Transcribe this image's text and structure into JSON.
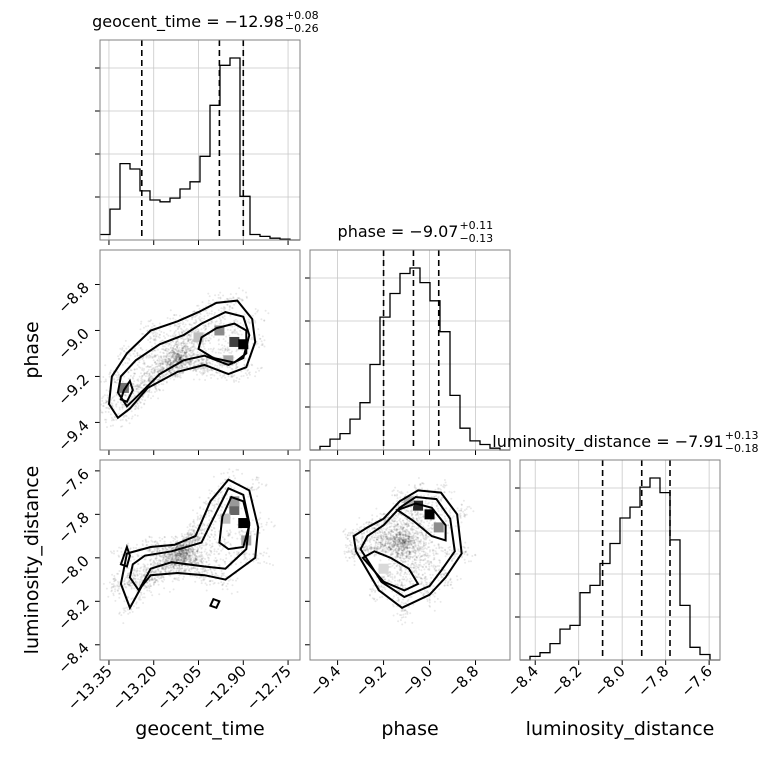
{
  "chart_data": {
    "type": "corner",
    "parameters": [
      "geocent_time",
      "phase",
      "luminosity_distance"
    ],
    "titles": [
      {
        "text": "geocent_time = −12.98",
        "plus": "+0.08",
        "minus": "−0.26"
      },
      {
        "text": "phase = −9.07",
        "plus": "+0.11",
        "minus": "−0.13"
      },
      {
        "text": "luminosity_distance = −7.91",
        "plus": "+0.13",
        "minus": "−0.18"
      }
    ],
    "ranges": {
      "geocent_time": [
        -13.38,
        -12.71
      ],
      "phase": [
        -9.52,
        -8.65
      ],
      "luminosity_distance": [
        -8.47,
        -7.55
      ]
    },
    "ticks": {
      "geocent_time": [
        -13.35,
        -13.2,
        -13.05,
        -12.9,
        -12.75
      ],
      "phase": [
        -9.4,
        -9.2,
        -9.0,
        -8.8
      ],
      "luminosity_distance": [
        -8.4,
        -8.2,
        -8.0,
        -7.8,
        -7.6
      ]
    },
    "tick_labels": {
      "geocent_time": [
        "−13.35",
        "−13.20",
        "−13.05",
        "−12.90",
        "−12.75"
      ],
      "phase": [
        "−9.4",
        "−9.2",
        "−9.0",
        "−8.8"
      ],
      "luminosity_distance": [
        "−8.4",
        "−8.2",
        "−8.0",
        "−7.8",
        "−7.6"
      ]
    },
    "axis_labels": [
      "geocent_time",
      "phase",
      "luminosity_distance"
    ],
    "quantiles": {
      "geocent_time": [
        -13.24,
        -12.98,
        -12.9
      ],
      "phase": [
        -9.2,
        -9.07,
        -8.96
      ],
      "luminosity_distance": [
        -8.09,
        -7.91,
        -7.78
      ]
    },
    "histograms": {
      "geocent_time": {
        "bins": [
          -13.38,
          -13.3465,
          -13.313,
          -13.2795,
          -13.246,
          -13.2125,
          -13.179,
          -13.1455,
          -13.112,
          -13.0785,
          -13.045,
          -13.0115,
          -12.978,
          -12.9445,
          -12.911,
          -12.8775,
          -12.844,
          -12.8105,
          -12.777,
          -12.7435,
          -12.71
        ],
        "counts": [
          0.03,
          0.17,
          0.42,
          0.39,
          0.27,
          0.22,
          0.21,
          0.23,
          0.28,
          0.32,
          0.46,
          0.74,
          0.96,
          1.0,
          0.24,
          0.03,
          0.02,
          0.01,
          0.005,
          0.0
        ]
      },
      "phase": {
        "bins": [
          -9.52,
          -9.4765,
          -9.433,
          -9.3895,
          -9.346,
          -9.3025,
          -9.259,
          -9.2155,
          -9.172,
          -9.1285,
          -9.085,
          -9.0415,
          -8.998,
          -8.9545,
          -8.911,
          -8.8675,
          -8.824,
          -8.7805,
          -8.737,
          -8.6935,
          -8.65
        ],
        "counts": [
          0.0,
          0.02,
          0.06,
          0.09,
          0.17,
          0.26,
          0.47,
          0.73,
          0.86,
          0.97,
          1.0,
          0.92,
          0.82,
          0.65,
          0.3,
          0.12,
          0.05,
          0.03,
          0.01,
          0.0
        ]
      },
      "luminosity_distance": {
        "bins": [
          -8.47,
          -8.424,
          -8.378,
          -8.332,
          -8.286,
          -8.24,
          -8.194,
          -8.148,
          -8.102,
          -8.056,
          -8.01,
          -7.964,
          -7.918,
          -7.872,
          -7.826,
          -7.78,
          -7.734,
          -7.688,
          -7.642,
          -7.596,
          -7.55
        ],
        "counts": [
          0.0,
          0.02,
          0.04,
          0.09,
          0.17,
          0.19,
          0.37,
          0.41,
          0.53,
          0.64,
          0.78,
          0.84,
          0.95,
          1.0,
          0.92,
          0.66,
          0.3,
          0.07,
          0.03,
          0.0
        ]
      }
    },
    "contours": {
      "phase_vs_geocent_time": [
        [
          [
            -13.35,
            -9.32
          ],
          [
            -13.32,
            -9.38
          ],
          [
            -13.28,
            -9.34
          ],
          [
            -13.22,
            -9.25
          ],
          [
            -13.12,
            -9.18
          ],
          [
            -13.03,
            -9.15
          ],
          [
            -12.95,
            -9.19
          ],
          [
            -12.89,
            -9.16
          ],
          [
            -12.86,
            -9.05
          ],
          [
            -12.87,
            -8.95
          ],
          [
            -12.92,
            -8.87
          ],
          [
            -12.99,
            -8.88
          ],
          [
            -13.05,
            -8.92
          ],
          [
            -13.12,
            -8.96
          ],
          [
            -13.21,
            -9.0
          ],
          [
            -13.29,
            -9.1
          ],
          [
            -13.34,
            -9.2
          ],
          [
            -13.35,
            -9.32
          ]
        ],
        [
          [
            -13.32,
            -9.27
          ],
          [
            -13.29,
            -9.33
          ],
          [
            -13.25,
            -9.28
          ],
          [
            -13.18,
            -9.19
          ],
          [
            -13.1,
            -9.13
          ],
          [
            -13.03,
            -9.11
          ],
          [
            -12.95,
            -9.15
          ],
          [
            -12.9,
            -9.12
          ],
          [
            -12.88,
            -9.02
          ],
          [
            -12.9,
            -8.94
          ],
          [
            -12.96,
            -8.92
          ],
          [
            -13.04,
            -8.97
          ],
          [
            -13.1,
            -9.02
          ],
          [
            -13.18,
            -9.06
          ],
          [
            -13.26,
            -9.13
          ],
          [
            -13.31,
            -9.2
          ],
          [
            -13.32,
            -9.27
          ]
        ],
        [
          [
            -13.05,
            -9.08
          ],
          [
            -13.0,
            -9.12
          ],
          [
            -12.93,
            -9.14
          ],
          [
            -12.89,
            -9.1
          ],
          [
            -12.89,
            -9.0
          ],
          [
            -12.93,
            -8.97
          ],
          [
            -12.99,
            -8.99
          ],
          [
            -13.04,
            -9.03
          ],
          [
            -13.05,
            -9.08
          ]
        ],
        [
          [
            -13.31,
            -9.3
          ],
          [
            -13.3,
            -9.26
          ],
          [
            -13.28,
            -9.22
          ],
          [
            -13.27,
            -9.26
          ],
          [
            -13.29,
            -9.31
          ],
          [
            -13.31,
            -9.3
          ]
        ]
      ],
      "luminosity_distance_vs_geocent_time": [
        [
          [
            -13.31,
            -8.12
          ],
          [
            -13.28,
            -8.23
          ],
          [
            -13.24,
            -8.13
          ],
          [
            -13.21,
            -8.08
          ],
          [
            -13.12,
            -8.07
          ],
          [
            -13.03,
            -8.08
          ],
          [
            -12.96,
            -8.1
          ],
          [
            -12.86,
            -8.0
          ],
          [
            -12.85,
            -7.86
          ],
          [
            -12.88,
            -7.69
          ],
          [
            -12.95,
            -7.64
          ],
          [
            -13.01,
            -7.74
          ],
          [
            -13.06,
            -7.9
          ],
          [
            -13.13,
            -7.94
          ],
          [
            -13.21,
            -7.95
          ],
          [
            -13.29,
            -7.98
          ],
          [
            -13.31,
            -8.12
          ]
        ],
        [
          [
            -13.28,
            -8.09
          ],
          [
            -13.25,
            -8.15
          ],
          [
            -13.21,
            -8.05
          ],
          [
            -13.14,
            -8.02
          ],
          [
            -13.03,
            -8.04
          ],
          [
            -12.96,
            -8.05
          ],
          [
            -12.89,
            -7.96
          ],
          [
            -12.88,
            -7.84
          ],
          [
            -12.9,
            -7.71
          ],
          [
            -12.95,
            -7.68
          ],
          [
            -12.99,
            -7.79
          ],
          [
            -13.04,
            -7.93
          ],
          [
            -13.14,
            -7.97
          ],
          [
            -13.23,
            -7.99
          ],
          [
            -13.27,
            -8.03
          ],
          [
            -13.28,
            -8.09
          ]
        ],
        [
          [
            -12.98,
            -7.93
          ],
          [
            -12.95,
            -7.96
          ],
          [
            -12.9,
            -7.95
          ],
          [
            -12.88,
            -7.85
          ],
          [
            -12.9,
            -7.74
          ],
          [
            -12.94,
            -7.72
          ],
          [
            -12.97,
            -7.81
          ],
          [
            -12.98,
            -7.93
          ]
        ],
        [
          [
            -13.31,
            -8.03
          ],
          [
            -13.3,
            -7.99
          ],
          [
            -13.29,
            -7.95
          ],
          [
            -13.28,
            -7.99
          ],
          [
            -13.29,
            -8.04
          ],
          [
            -13.31,
            -8.03
          ]
        ],
        [
          [
            -13.01,
            -8.22
          ],
          [
            -12.99,
            -8.23
          ],
          [
            -12.98,
            -8.2
          ],
          [
            -13.0,
            -8.19
          ],
          [
            -13.01,
            -8.22
          ]
        ]
      ],
      "luminosity_distance_vs_phase": [
        [
          [
            -9.32,
            -7.97
          ],
          [
            -9.22,
            -8.15
          ],
          [
            -9.12,
            -8.23
          ],
          [
            -9.0,
            -8.17
          ],
          [
            -8.93,
            -8.09
          ],
          [
            -8.86,
            -7.98
          ],
          [
            -8.88,
            -7.8
          ],
          [
            -8.95,
            -7.7
          ],
          [
            -9.05,
            -7.69
          ],
          [
            -9.13,
            -7.74
          ],
          [
            -9.2,
            -7.82
          ],
          [
            -9.27,
            -7.86
          ],
          [
            -9.33,
            -7.9
          ],
          [
            -9.32,
            -7.97
          ]
        ],
        [
          [
            -9.3,
            -7.96
          ],
          [
            -9.21,
            -8.11
          ],
          [
            -9.11,
            -8.18
          ],
          [
            -9.0,
            -8.13
          ],
          [
            -8.95,
            -8.06
          ],
          [
            -8.89,
            -7.97
          ],
          [
            -8.91,
            -7.82
          ],
          [
            -8.97,
            -7.73
          ],
          [
            -9.06,
            -7.72
          ],
          [
            -9.13,
            -7.77
          ],
          [
            -9.2,
            -7.85
          ],
          [
            -9.27,
            -7.9
          ],
          [
            -9.3,
            -7.96
          ]
        ],
        [
          [
            -9.14,
            -7.78
          ],
          [
            -9.06,
            -7.75
          ],
          [
            -8.99,
            -7.77
          ],
          [
            -8.93,
            -7.85
          ],
          [
            -8.93,
            -7.92
          ],
          [
            -8.99,
            -7.9
          ],
          [
            -9.07,
            -7.83
          ],
          [
            -9.14,
            -7.78
          ]
        ],
        [
          [
            -9.29,
            -8.0
          ],
          [
            -9.2,
            -8.11
          ],
          [
            -9.11,
            -8.15
          ],
          [
            -9.05,
            -8.12
          ],
          [
            -9.09,
            -8.05
          ],
          [
            -9.17,
            -8.0
          ],
          [
            -9.24,
            -7.97
          ],
          [
            -9.29,
            -8.0
          ]
        ]
      ]
    },
    "density_peaks": {
      "phase_vs_geocent_time": [
        [
          -12.98,
          -9.0,
          0.45
        ],
        [
          -12.93,
          -9.05,
          0.75
        ],
        [
          -12.9,
          -9.06,
          1.0
        ],
        [
          -13.3,
          -9.25,
          0.55
        ],
        [
          -12.95,
          -9.13,
          0.35
        ],
        [
          -13.05,
          -9.03,
          0.25
        ]
      ],
      "luminosity_distance_vs_geocent_time": [
        [
          -12.93,
          -7.78,
          0.6
        ],
        [
          -12.9,
          -7.84,
          1.0
        ],
        [
          -12.93,
          -7.74,
          0.4
        ],
        [
          -12.89,
          -7.92,
          0.35
        ],
        [
          -12.96,
          -7.82,
          0.25
        ]
      ],
      "luminosity_distance_vs_phase": [
        [
          -9.0,
          -7.8,
          1.0
        ],
        [
          -9.05,
          -7.76,
          0.85
        ],
        [
          -8.96,
          -7.86,
          0.45
        ],
        [
          -9.09,
          -7.74,
          0.3
        ],
        [
          -9.2,
          -8.05,
          0.15
        ]
      ]
    }
  }
}
